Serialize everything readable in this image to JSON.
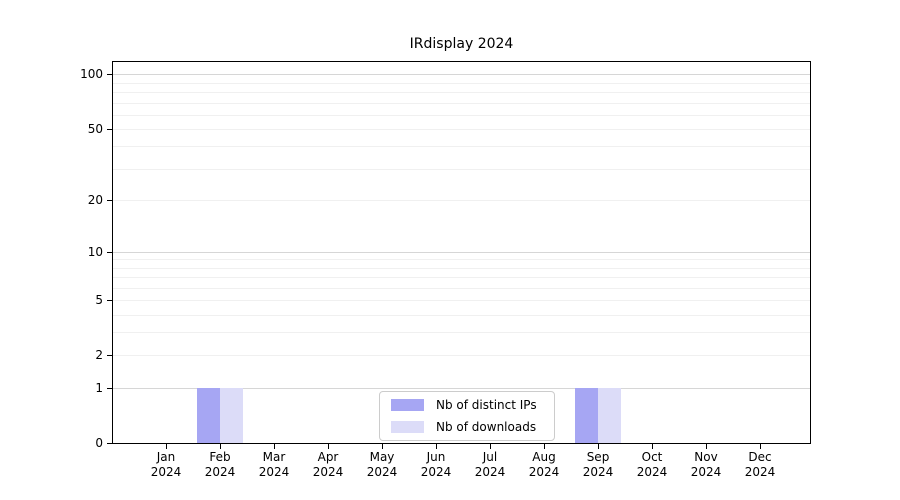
{
  "chart_data": {
    "type": "bar",
    "title": "IRdisplay 2024",
    "categories": [
      "Jan\n2024",
      "Feb\n2024",
      "Mar\n2024",
      "Apr\n2024",
      "May\n2024",
      "Jun\n2024",
      "Jul\n2024",
      "Aug\n2024",
      "Sep\n2024",
      "Oct\n2024",
      "Nov\n2024",
      "Dec\n2024"
    ],
    "series": [
      {
        "name": "Nb of distinct IPs",
        "color": "#a6a6f3",
        "values": [
          0,
          1,
          0,
          0,
          0,
          0,
          0,
          0,
          1,
          0,
          0,
          0
        ]
      },
      {
        "name": "Nb of downloads",
        "color": "#dcdcf8",
        "values": [
          0,
          1,
          0,
          0,
          0,
          0,
          0,
          0,
          1,
          0,
          0,
          0
        ]
      }
    ],
    "xlabel": "",
    "ylabel": "",
    "yscale": "log1p",
    "ylim": [
      0,
      117
    ],
    "yticks": [
      0,
      1,
      2,
      5,
      10,
      20,
      50,
      100
    ],
    "grid": {
      "major_values": [
        1,
        10,
        100
      ],
      "minor_values": [
        2,
        3,
        4,
        5,
        6,
        7,
        8,
        9,
        20,
        30,
        40,
        50,
        60,
        70,
        80,
        90
      ],
      "major_color": "#d6d6d6",
      "minor_color": "#f0f0f0"
    },
    "legend": {
      "location": "lower center"
    },
    "axis_color": "#000000",
    "background": "#ffffff"
  }
}
